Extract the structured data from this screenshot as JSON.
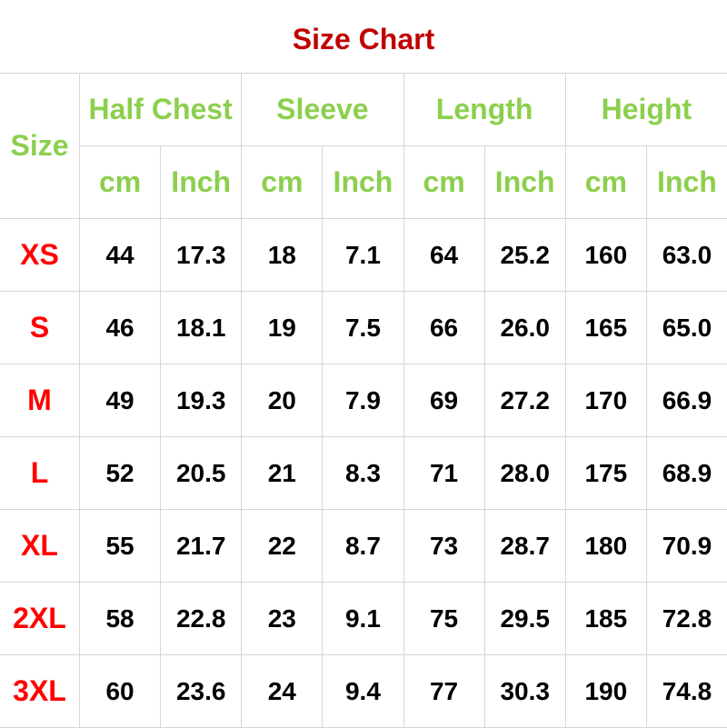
{
  "title": "Size Chart",
  "colors": {
    "title": "#c00000",
    "header": "#8ccf4d",
    "size": "#ff0000",
    "value": "#000000",
    "grid": "#d6d6d6"
  },
  "header": {
    "size": "Size",
    "groups": [
      "Half Chest",
      "Sleeve",
      "Length",
      "Height"
    ],
    "units": [
      "cm",
      "Inch",
      "cm",
      "Inch",
      "cm",
      "Inch",
      "cm",
      "Inch"
    ]
  },
  "rows": [
    {
      "size": "XS",
      "values": [
        "44",
        "17.3",
        "18",
        "7.1",
        "64",
        "25.2",
        "160",
        "63.0"
      ]
    },
    {
      "size": "S",
      "values": [
        "46",
        "18.1",
        "19",
        "7.5",
        "66",
        "26.0",
        "165",
        "65.0"
      ]
    },
    {
      "size": "M",
      "values": [
        "49",
        "19.3",
        "20",
        "7.9",
        "69",
        "27.2",
        "170",
        "66.9"
      ]
    },
    {
      "size": "L",
      "values": [
        "52",
        "20.5",
        "21",
        "8.3",
        "71",
        "28.0",
        "175",
        "68.9"
      ]
    },
    {
      "size": "XL",
      "values": [
        "55",
        "21.7",
        "22",
        "8.7",
        "73",
        "28.7",
        "180",
        "70.9"
      ]
    },
    {
      "size": "2XL",
      "values": [
        "58",
        "22.8",
        "23",
        "9.1",
        "75",
        "29.5",
        "185",
        "72.8"
      ]
    },
    {
      "size": "3XL",
      "values": [
        "60",
        "23.6",
        "24",
        "9.4",
        "77",
        "30.3",
        "190",
        "74.8"
      ]
    }
  ]
}
